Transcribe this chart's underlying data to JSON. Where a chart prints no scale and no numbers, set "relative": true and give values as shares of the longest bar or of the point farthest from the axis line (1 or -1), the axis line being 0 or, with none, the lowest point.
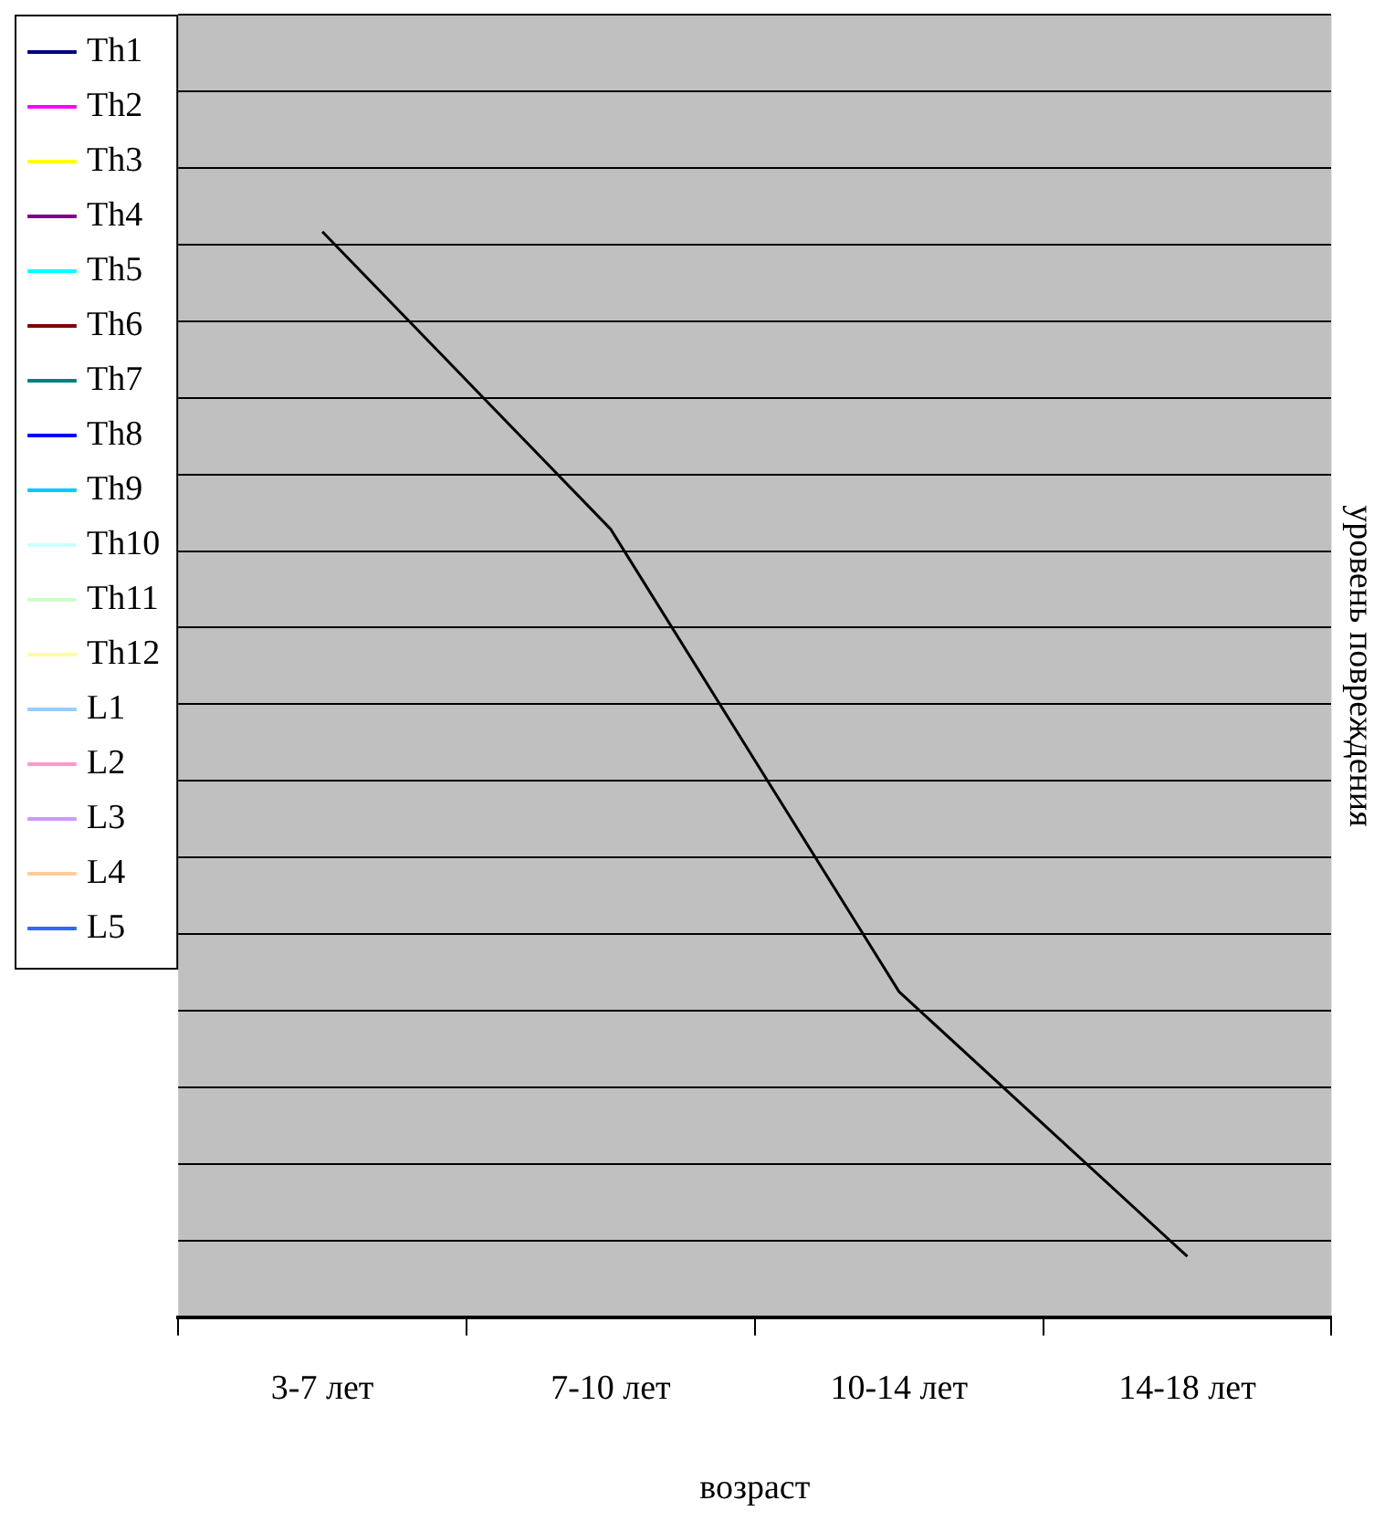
{
  "chart_data": {
    "type": "line",
    "relative": true,
    "xlabel": "возраст",
    "ylabel": "уровень повреждения",
    "categories": [
      "3-7 лет",
      "7-10 лет",
      "10-14 лет",
      "14-18 лет"
    ],
    "series": [
      {
        "color": "#000000",
        "values": [
          1,
          0.726,
          0.3,
          0.056
        ]
      },
      {
        "name": "Th1",
        "color": "#000080",
        "values": [
          null,
          null,
          null,
          null
        ]
      },
      {
        "name": "Th2",
        "color": "#ff00ff",
        "values": [
          null,
          null,
          null,
          null
        ]
      },
      {
        "name": "Th3",
        "color": "#ffff00",
        "values": [
          null,
          null,
          null,
          null
        ]
      },
      {
        "name": "Th4",
        "color": "#800080",
        "values": [
          null,
          null,
          null,
          null
        ]
      },
      {
        "name": "Th5",
        "color": "#00ffff",
        "values": [
          null,
          null,
          null,
          null
        ]
      },
      {
        "name": "Th6",
        "color": "#800000",
        "values": [
          null,
          null,
          null,
          null
        ]
      },
      {
        "name": "Th7",
        "color": "#008080",
        "values": [
          null,
          null,
          null,
          null
        ]
      },
      {
        "name": "Th8",
        "color": "#0000ff",
        "values": [
          null,
          null,
          null,
          null
        ]
      },
      {
        "name": "Th9",
        "color": "#00ccff",
        "values": [
          null,
          null,
          null,
          null
        ]
      },
      {
        "name": "Th10",
        "color": "#ccffff",
        "values": [
          null,
          null,
          null,
          null
        ]
      },
      {
        "name": "Th11",
        "color": "#ccffcc",
        "values": [
          null,
          null,
          null,
          null
        ]
      },
      {
        "name": "Th12",
        "color": "#ffff99",
        "values": [
          null,
          null,
          null,
          null
        ]
      },
      {
        "name": "L1",
        "color": "#99ccff",
        "values": [
          null,
          null,
          null,
          null
        ]
      },
      {
        "name": "L2",
        "color": "#ff99cc",
        "values": [
          null,
          null,
          null,
          null
        ]
      },
      {
        "name": "L3",
        "color": "#cc99ff",
        "values": [
          null,
          null,
          null,
          null
        ]
      },
      {
        "name": "L4",
        "color": "#ffcc99",
        "values": [
          null,
          null,
          null,
          null
        ]
      },
      {
        "name": "L5",
        "color": "#3366ff",
        "values": [
          null,
          null,
          null,
          null
        ]
      }
    ],
    "grid": "y",
    "legend": "left",
    "marker": "none",
    "line_style": "solid"
  }
}
